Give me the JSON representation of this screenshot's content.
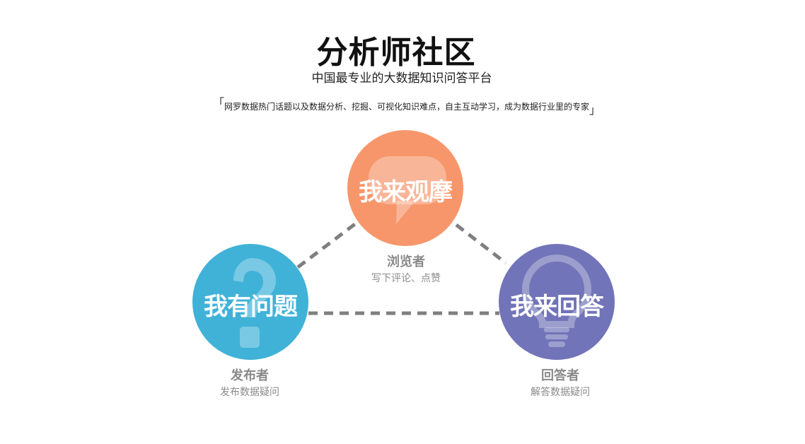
{
  "header": {
    "title": "分析师社区",
    "subtitle": "中国最专业的大数据知识问答平台",
    "tagline": "网罗数据热门话题以及数据分析、挖掘、可视化知识难点，自主互动学习，成为数据行业里的专家",
    "bracket_open": "「",
    "bracket_close": "」"
  },
  "nodes": [
    {
      "label": "我来观摩",
      "icon": "speech-bubble-icon",
      "color": "#f7966b",
      "role": "浏览者",
      "desc": "写下评论、点赞"
    },
    {
      "label": "我有问题",
      "icon": "question-mark-icon",
      "color": "#40b2d8",
      "role": "发布者",
      "desc": "发布数据疑问"
    },
    {
      "label": "我来回答",
      "icon": "lightbulb-icon",
      "color": "#7174b8",
      "role": "回答者",
      "desc": "解答数据疑问"
    }
  ],
  "connector_color": "#7f7f7f"
}
